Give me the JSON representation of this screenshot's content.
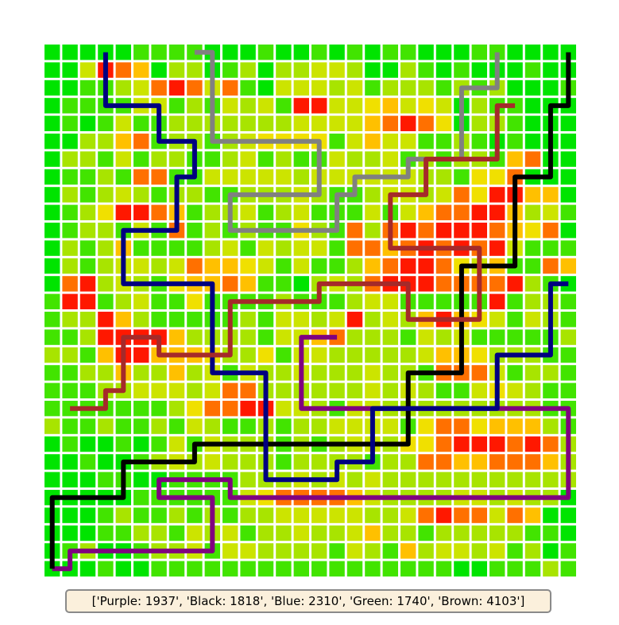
{
  "legend_text": "['Purple: 1937', 'Black: 1818', 'Blue: 2310', 'Green: 1740', 'Brown: 4103']",
  "grid": {
    "cols": 30,
    "rows": 30,
    "colors": {
      "0": "#00e400",
      "1": "#42e400",
      "2": "#a8e400",
      "3": "#cce400",
      "4": "#f0e000",
      "5": "#ffc000",
      "6": "#ff7000",
      "7": "#ff1800"
    },
    "cells": [
      "000001111000100101011000110000",
      "003765022012022332002101000100",
      "001123676361033323122212120001",
      "011113312132317733453430211000",
      "010131122222223333567640221000",
      "002256122123444413533112101000",
      "022131221123121132231212215600",
      "011216611333332333333221446000",
      "021232122112223211233236477550",
      "012477651223123111313566775231",
      "012213161212114216267677765460",
      "021251111231323316656767673111",
      "021233236554313112567764351165",
      "067232145565110232677766667210",
      "177123114111121112331111171221",
      "122752111112133237232575431321",
      "112777752222133562221323111112",
      "221577555422413322222355422211",
      "112252252313223222322166631221",
      "111223332366222222323211343211",
      "111111124667733213322222222211",
      "211211213211212233331466455521",
      "010010131322212123324467776762",
      "001001232322212222122665566652",
      "000110011112223232322222222222",
      "000001111113466665322223323220",
      "000121121212233333223676636500",
      "000112213231223223522122222110",
      "012001223133222213215233231201",
      "000100111111111111111110011121"
    ]
  },
  "paths": [
    {
      "name": "Purple",
      "color": "#800080",
      "points": [
        [
          0,
          29
        ],
        [
          1,
          29
        ],
        [
          1,
          28
        ],
        [
          9,
          28
        ],
        [
          9,
          25
        ],
        [
          6,
          25
        ],
        [
          6,
          24
        ],
        [
          10,
          24
        ],
        [
          10,
          25
        ],
        [
          29,
          25
        ],
        [
          29,
          20
        ],
        [
          14,
          20
        ],
        [
          14,
          16
        ],
        [
          16,
          16
        ]
      ]
    },
    {
      "name": "Black",
      "color": "#000000",
      "points": [
        [
          0,
          29
        ],
        [
          0,
          25
        ],
        [
          4,
          25
        ],
        [
          4,
          23
        ],
        [
          8,
          23
        ],
        [
          8,
          22
        ],
        [
          20,
          22
        ],
        [
          20,
          18
        ],
        [
          23,
          18
        ],
        [
          23,
          12
        ],
        [
          26,
          12
        ],
        [
          26,
          7
        ],
        [
          28,
          7
        ],
        [
          28,
          3
        ],
        [
          29,
          3
        ],
        [
          29,
          0
        ]
      ]
    },
    {
      "name": "Blue",
      "color": "#000080",
      "points": [
        [
          3,
          0
        ],
        [
          3,
          3
        ],
        [
          6,
          3
        ],
        [
          6,
          5
        ],
        [
          8,
          5
        ],
        [
          8,
          7
        ],
        [
          7,
          7
        ],
        [
          7,
          10
        ],
        [
          4,
          10
        ],
        [
          4,
          13
        ],
        [
          9,
          13
        ],
        [
          9,
          18
        ],
        [
          12,
          18
        ],
        [
          12,
          24
        ],
        [
          16,
          24
        ],
        [
          16,
          23
        ],
        [
          18,
          23
        ],
        [
          18,
          20
        ],
        [
          25,
          20
        ],
        [
          25,
          17
        ],
        [
          28,
          17
        ],
        [
          28,
          13
        ],
        [
          29,
          13
        ]
      ]
    },
    {
      "name": "Green",
      "color": "#808080",
      "points": [
        [
          8,
          0
        ],
        [
          9,
          0
        ],
        [
          9,
          5
        ],
        [
          15,
          5
        ],
        [
          15,
          8
        ],
        [
          10,
          8
        ],
        [
          10,
          10
        ],
        [
          16,
          10
        ],
        [
          16,
          8
        ],
        [
          17,
          8
        ],
        [
          17,
          7
        ],
        [
          20,
          7
        ],
        [
          20,
          6
        ],
        [
          23,
          6
        ],
        [
          23,
          2
        ],
        [
          25,
          2
        ],
        [
          25,
          0
        ]
      ]
    },
    {
      "name": "Brown",
      "color": "#a52a2a",
      "points": [
        [
          26,
          3
        ],
        [
          25,
          3
        ],
        [
          25,
          6
        ],
        [
          21,
          6
        ],
        [
          21,
          8
        ],
        [
          19,
          8
        ],
        [
          19,
          11
        ],
        [
          24,
          11
        ],
        [
          24,
          15
        ],
        [
          20,
          15
        ],
        [
          20,
          13
        ],
        [
          15,
          13
        ],
        [
          15,
          14
        ],
        [
          10,
          14
        ],
        [
          10,
          17
        ],
        [
          6,
          17
        ],
        [
          6,
          16
        ],
        [
          4,
          16
        ],
        [
          4,
          19
        ],
        [
          3,
          19
        ],
        [
          3,
          20
        ],
        [
          1,
          20
        ]
      ]
    }
  ]
}
